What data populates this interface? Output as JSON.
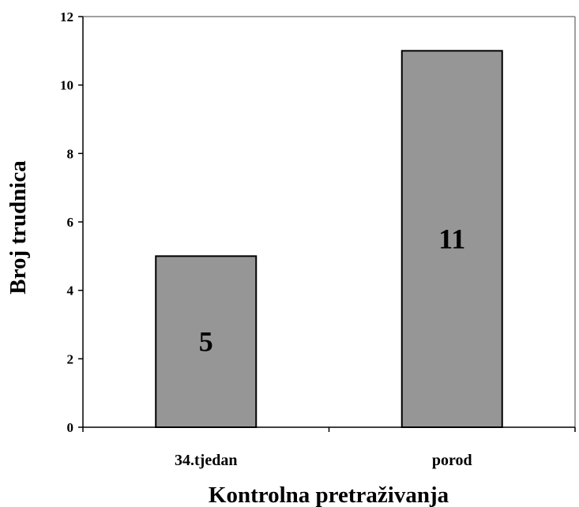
{
  "chart_data": {
    "type": "bar",
    "title": "",
    "xlabel": "Kontrolna pretraživanja",
    "ylabel": "Broj trudnica",
    "categories": [
      "34.tjedan",
      "porod"
    ],
    "values": [
      5,
      11
    ],
    "data_labels": [
      "5",
      "11"
    ],
    "ylim": [
      0,
      12
    ],
    "yticks": [
      0,
      2,
      4,
      6,
      8,
      10,
      12
    ],
    "ytick_labels": [
      "0",
      "2",
      "4",
      "6",
      "8",
      "10",
      "12"
    ],
    "grid": false,
    "legend": "none",
    "colors": {
      "bar_fill": "#969696",
      "bar_stroke": "#000000",
      "axis": "#000000",
      "plot_border": "#808080"
    }
  }
}
